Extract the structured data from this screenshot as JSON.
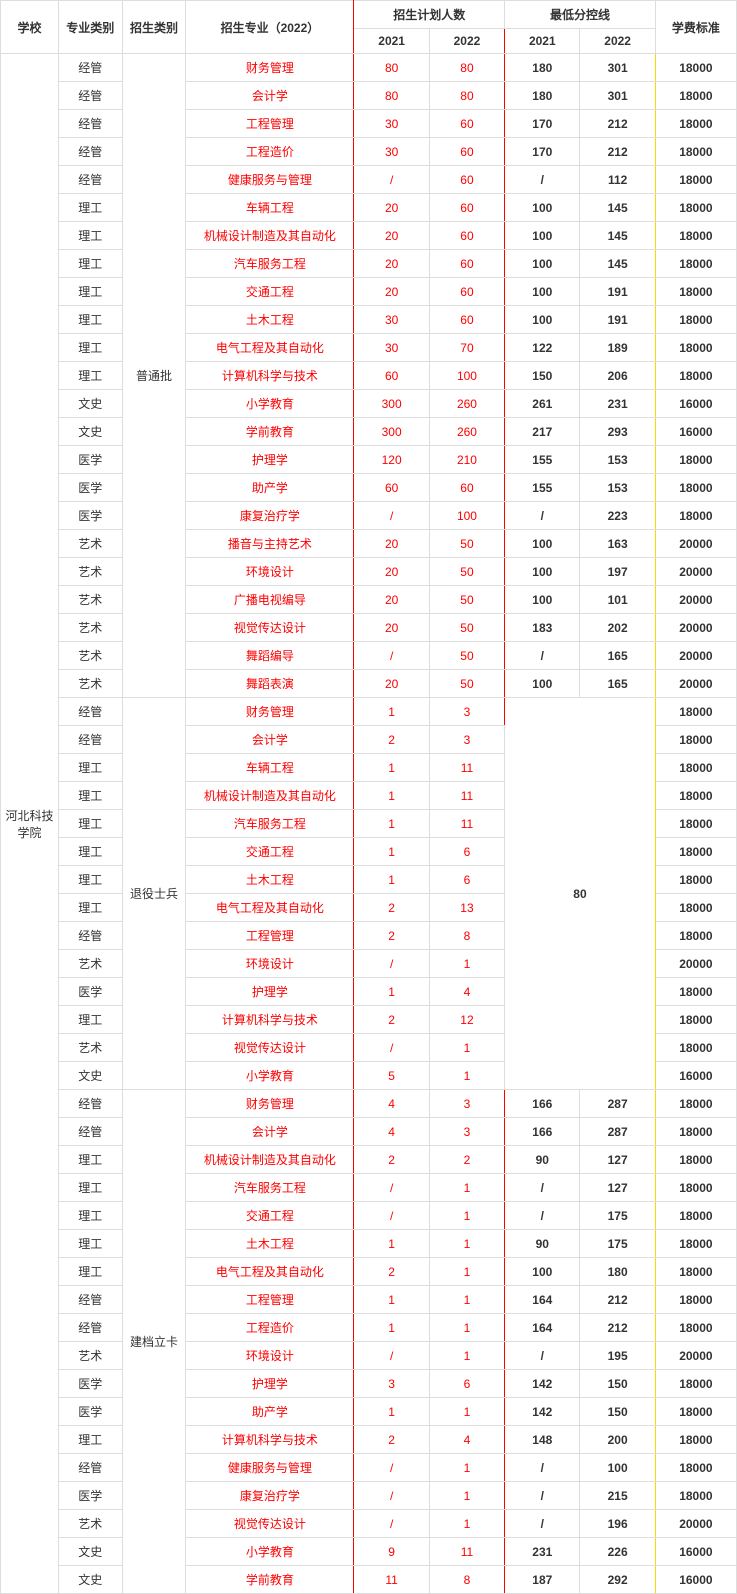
{
  "headers": {
    "school": "学校",
    "category": "专业类别",
    "type": "招生类别",
    "major": "招生专业（2022）",
    "plan": "招生计划人数",
    "cutoff": "最低分控线",
    "fee": "学费标准",
    "y2021": "2021",
    "y2022": "2022"
  },
  "school": "河北科技学院",
  "groups": [
    {
      "type": "普通批",
      "merged_score": null,
      "rows": [
        {
          "cat": "经管",
          "major": "财务管理",
          "p21": "80",
          "p22": "80",
          "s21": "180",
          "s22": "301",
          "fee": "18000"
        },
        {
          "cat": "经管",
          "major": "会计学",
          "p21": "80",
          "p22": "80",
          "s21": "180",
          "s22": "301",
          "fee": "18000"
        },
        {
          "cat": "经管",
          "major": "工程管理",
          "p21": "30",
          "p22": "60",
          "s21": "170",
          "s22": "212",
          "fee": "18000"
        },
        {
          "cat": "经管",
          "major": "工程造价",
          "p21": "30",
          "p22": "60",
          "s21": "170",
          "s22": "212",
          "fee": "18000"
        },
        {
          "cat": "经管",
          "major": "健康服务与管理",
          "p21": "/",
          "p22": "60",
          "s21": "/",
          "s22": "112",
          "fee": "18000"
        },
        {
          "cat": "理工",
          "major": "车辆工程",
          "p21": "20",
          "p22": "60",
          "s21": "100",
          "s22": "145",
          "fee": "18000"
        },
        {
          "cat": "理工",
          "major": "机械设计制造及其自动化",
          "p21": "20",
          "p22": "60",
          "s21": "100",
          "s22": "145",
          "fee": "18000"
        },
        {
          "cat": "理工",
          "major": "汽车服务工程",
          "p21": "20",
          "p22": "60",
          "s21": "100",
          "s22": "145",
          "fee": "18000"
        },
        {
          "cat": "理工",
          "major": "交通工程",
          "p21": "20",
          "p22": "60",
          "s21": "100",
          "s22": "191",
          "fee": "18000"
        },
        {
          "cat": "理工",
          "major": "土木工程",
          "p21": "30",
          "p22": "60",
          "s21": "100",
          "s22": "191",
          "fee": "18000"
        },
        {
          "cat": "理工",
          "major": "电气工程及其自动化",
          "p21": "30",
          "p22": "70",
          "s21": "122",
          "s22": "189",
          "fee": "18000"
        },
        {
          "cat": "理工",
          "major": "计算机科学与技术",
          "p21": "60",
          "p22": "100",
          "s21": "150",
          "s22": "206",
          "fee": "18000"
        },
        {
          "cat": "文史",
          "major": "小学教育",
          "p21": "300",
          "p22": "260",
          "s21": "261",
          "s22": "231",
          "fee": "16000"
        },
        {
          "cat": "文史",
          "major": "学前教育",
          "p21": "300",
          "p22": "260",
          "s21": "217",
          "s22": "293",
          "fee": "16000"
        },
        {
          "cat": "医学",
          "major": "护理学",
          "p21": "120",
          "p22": "210",
          "s21": "155",
          "s22": "153",
          "fee": "18000"
        },
        {
          "cat": "医学",
          "major": "助产学",
          "p21": "60",
          "p22": "60",
          "s21": "155",
          "s22": "153",
          "fee": "18000"
        },
        {
          "cat": "医学",
          "major": "康复治疗学",
          "p21": "/",
          "p22": "100",
          "s21": "/",
          "s22": "223",
          "fee": "18000"
        },
        {
          "cat": "艺术",
          "major": "播音与主持艺术",
          "p21": "20",
          "p22": "50",
          "s21": "100",
          "s22": "163",
          "fee": "20000"
        },
        {
          "cat": "艺术",
          "major": "环境设计",
          "p21": "20",
          "p22": "50",
          "s21": "100",
          "s22": "197",
          "fee": "20000"
        },
        {
          "cat": "艺术",
          "major": "广播电视编导",
          "p21": "20",
          "p22": "50",
          "s21": "100",
          "s22": "101",
          "fee": "20000"
        },
        {
          "cat": "艺术",
          "major": "视觉传达设计",
          "p21": "20",
          "p22": "50",
          "s21": "183",
          "s22": "202",
          "fee": "20000"
        },
        {
          "cat": "艺术",
          "major": "舞蹈编导",
          "p21": "/",
          "p22": "50",
          "s21": "/",
          "s22": "165",
          "fee": "20000"
        },
        {
          "cat": "艺术",
          "major": "舞蹈表演",
          "p21": "20",
          "p22": "50",
          "s21": "100",
          "s22": "165",
          "fee": "20000"
        }
      ]
    },
    {
      "type": "退役士兵",
      "merged_score": "80",
      "rows": [
        {
          "cat": "经管",
          "major": "财务管理",
          "p21": "1",
          "p22": "3",
          "fee": "18000"
        },
        {
          "cat": "经管",
          "major": "会计学",
          "p21": "2",
          "p22": "3",
          "fee": "18000"
        },
        {
          "cat": "理工",
          "major": "车辆工程",
          "p21": "1",
          "p22": "11",
          "fee": "18000"
        },
        {
          "cat": "理工",
          "major": "机械设计制造及其自动化",
          "p21": "1",
          "p22": "11",
          "fee": "18000"
        },
        {
          "cat": "理工",
          "major": "汽车服务工程",
          "p21": "1",
          "p22": "11",
          "fee": "18000"
        },
        {
          "cat": "理工",
          "major": "交通工程",
          "p21": "1",
          "p22": "6",
          "fee": "18000"
        },
        {
          "cat": "理工",
          "major": "土木工程",
          "p21": "1",
          "p22": "6",
          "fee": "18000"
        },
        {
          "cat": "理工",
          "major": "电气工程及其自动化",
          "p21": "2",
          "p22": "13",
          "fee": "18000"
        },
        {
          "cat": "经管",
          "major": "工程管理",
          "p21": "2",
          "p22": "8",
          "fee": "18000"
        },
        {
          "cat": "艺术",
          "major": "环境设计",
          "p21": "/",
          "p22": "1",
          "fee": "20000"
        },
        {
          "cat": "医学",
          "major": "护理学",
          "p21": "1",
          "p22": "4",
          "fee": "18000"
        },
        {
          "cat": "理工",
          "major": "计算机科学与技术",
          "p21": "2",
          "p22": "12",
          "fee": "18000"
        },
        {
          "cat": "艺术",
          "major": "视觉传达设计",
          "p21": "/",
          "p22": "1",
          "fee": "18000"
        },
        {
          "cat": "文史",
          "major": "小学教育",
          "p21": "5",
          "p22": "1",
          "fee": "16000"
        }
      ]
    },
    {
      "type": "建档立卡",
      "merged_score": null,
      "rows": [
        {
          "cat": "经管",
          "major": "财务管理",
          "p21": "4",
          "p22": "3",
          "s21": "166",
          "s22": "287",
          "fee": "18000"
        },
        {
          "cat": "经管",
          "major": "会计学",
          "p21": "4",
          "p22": "3",
          "s21": "166",
          "s22": "287",
          "fee": "18000"
        },
        {
          "cat": "理工",
          "major": "机械设计制造及其自动化",
          "p21": "2",
          "p22": "2",
          "s21": "90",
          "s22": "127",
          "fee": "18000"
        },
        {
          "cat": "理工",
          "major": "汽车服务工程",
          "p21": "/",
          "p22": "1",
          "s21": "/",
          "s22": "127",
          "fee": "18000"
        },
        {
          "cat": "理工",
          "major": "交通工程",
          "p21": "/",
          "p22": "1",
          "s21": "/",
          "s22": "175",
          "fee": "18000"
        },
        {
          "cat": "理工",
          "major": "土木工程",
          "p21": "1",
          "p22": "1",
          "s21": "90",
          "s22": "175",
          "fee": "18000"
        },
        {
          "cat": "理工",
          "major": "电气工程及其自动化",
          "p21": "2",
          "p22": "1",
          "s21": "100",
          "s22": "180",
          "fee": "18000"
        },
        {
          "cat": "经管",
          "major": "工程管理",
          "p21": "1",
          "p22": "1",
          "s21": "164",
          "s22": "212",
          "fee": "18000"
        },
        {
          "cat": "经管",
          "major": "工程造价",
          "p21": "1",
          "p22": "1",
          "s21": "164",
          "s22": "212",
          "fee": "18000"
        },
        {
          "cat": "艺术",
          "major": "环境设计",
          "p21": "/",
          "p22": "1",
          "s21": "/",
          "s22": "195",
          "fee": "20000"
        },
        {
          "cat": "医学",
          "major": "护理学",
          "p21": "3",
          "p22": "6",
          "s21": "142",
          "s22": "150",
          "fee": "18000"
        },
        {
          "cat": "医学",
          "major": "助产学",
          "p21": "1",
          "p22": "1",
          "s21": "142",
          "s22": "150",
          "fee": "18000"
        },
        {
          "cat": "理工",
          "major": "计算机科学与技术",
          "p21": "2",
          "p22": "4",
          "s21": "148",
          "s22": "200",
          "fee": "18000"
        },
        {
          "cat": "经管",
          "major": "健康服务与管理",
          "p21": "/",
          "p22": "1",
          "s21": "/",
          "s22": "100",
          "fee": "18000"
        },
        {
          "cat": "医学",
          "major": "康复治疗学",
          "p21": "/",
          "p22": "1",
          "s21": "/",
          "s22": "215",
          "fee": "18000"
        },
        {
          "cat": "艺术",
          "major": "视觉传达设计",
          "p21": "/",
          "p22": "1",
          "s21": "/",
          "s22": "196",
          "fee": "20000"
        },
        {
          "cat": "文史",
          "major": "小学教育",
          "p21": "9",
          "p22": "11",
          "s21": "231",
          "s22": "226",
          "fee": "16000"
        },
        {
          "cat": "文史",
          "major": "学前教育",
          "p21": "11",
          "p22": "8",
          "s21": "187",
          "s22": "292",
          "fee": "16000"
        }
      ]
    }
  ],
  "style": {
    "red": "#ff0000",
    "text": "#333333",
    "border": "#dddddd",
    "yellow_border": "#ffd700",
    "font_size": 12,
    "bg": "#ffffff"
  }
}
